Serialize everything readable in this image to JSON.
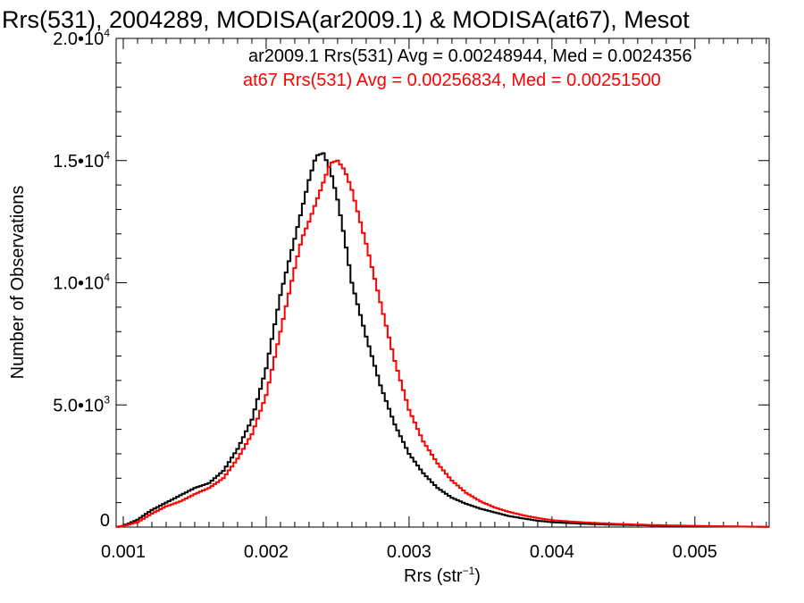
{
  "chart_data": {
    "type": "line",
    "title": "Rrs(531), 2004289, MODISA(ar2009.1) & MODISA(at67), Mesot",
    "xlabel": "Rrs (str",
    "xlabel_sup": "−1",
    "xlabel_close": ")",
    "ylabel": "Number of Observations",
    "xlim": [
      0.00095,
      0.00552
    ],
    "ylim": [
      0,
      20000
    ],
    "x_ticks": [
      {
        "value": 0.001,
        "label": "0.001"
      },
      {
        "value": 0.002,
        "label": "0.002"
      },
      {
        "value": 0.003,
        "label": "0.003"
      },
      {
        "value": 0.004,
        "label": "0.004"
      },
      {
        "value": 0.005,
        "label": "0.005"
      }
    ],
    "y_ticks": [
      {
        "value": 0,
        "label": "0",
        "exp": ""
      },
      {
        "value": 5000,
        "label": "5.0•10",
        "exp": "3"
      },
      {
        "value": 10000,
        "label": "1.0•10",
        "exp": "4"
      },
      {
        "value": 15000,
        "label": "1.5•10",
        "exp": "4"
      },
      {
        "value": 20000,
        "label": "2.0•10",
        "exp": "4"
      }
    ],
    "step": "histogram",
    "grid": false,
    "series": [
      {
        "name": "ar2009.1",
        "color": "#000000",
        "annotation": "ar2009.1 Rrs(531) Avg = 0.00248944, Med = 0.0024356",
        "x": [
          0.00095,
          0.001,
          0.0011,
          0.0012,
          0.0013,
          0.0014,
          0.0015,
          0.0016,
          0.0017,
          0.0018,
          0.0019,
          0.002,
          0.0021,
          0.0022,
          0.00225,
          0.0023,
          0.00235,
          0.0024,
          0.00245,
          0.0025,
          0.00255,
          0.0026,
          0.0027,
          0.0028,
          0.0029,
          0.003,
          0.0031,
          0.0032,
          0.0033,
          0.0034,
          0.0035,
          0.0036,
          0.0037,
          0.0038,
          0.0039,
          0.004,
          0.0042,
          0.0044,
          0.0046,
          0.0048,
          0.005,
          0.0052,
          0.0055
        ],
        "y": [
          0,
          50,
          300,
          700,
          1000,
          1300,
          1600,
          1800,
          2300,
          3200,
          4400,
          6500,
          9500,
          11800,
          13000,
          14200,
          15200,
          15300,
          14600,
          13400,
          11800,
          10000,
          7800,
          5800,
          4200,
          3000,
          2200,
          1600,
          1200,
          950,
          750,
          600,
          450,
          350,
          260,
          200,
          140,
          100,
          80,
          55,
          40,
          25,
          10
        ]
      },
      {
        "name": "at67",
        "color": "#ff0000",
        "annotation": "at67 Rrs(531) Avg = 0.00256834, Med = 0.00251500",
        "x": [
          0.00095,
          0.001,
          0.0011,
          0.0012,
          0.0013,
          0.0014,
          0.0015,
          0.0016,
          0.0017,
          0.0018,
          0.0019,
          0.002,
          0.0021,
          0.0022,
          0.00225,
          0.0023,
          0.00235,
          0.0024,
          0.00245,
          0.0025,
          0.00255,
          0.0026,
          0.0027,
          0.0028,
          0.0029,
          0.003,
          0.0031,
          0.0032,
          0.0033,
          0.0034,
          0.0035,
          0.0036,
          0.0037,
          0.0038,
          0.0039,
          0.004,
          0.0042,
          0.0044,
          0.0046,
          0.0048,
          0.005,
          0.0052,
          0.0055
        ],
        "y": [
          0,
          40,
          200,
          550,
          850,
          1050,
          1350,
          1600,
          2000,
          2800,
          3800,
          5400,
          8000,
          10600,
          11800,
          12500,
          13300,
          14100,
          14900,
          15000,
          14600,
          13800,
          11600,
          9200,
          6800,
          4800,
          3500,
          2600,
          1900,
          1400,
          1050,
          800,
          620,
          480,
          370,
          280,
          200,
          140,
          100,
          70,
          50,
          30,
          12
        ]
      }
    ]
  }
}
